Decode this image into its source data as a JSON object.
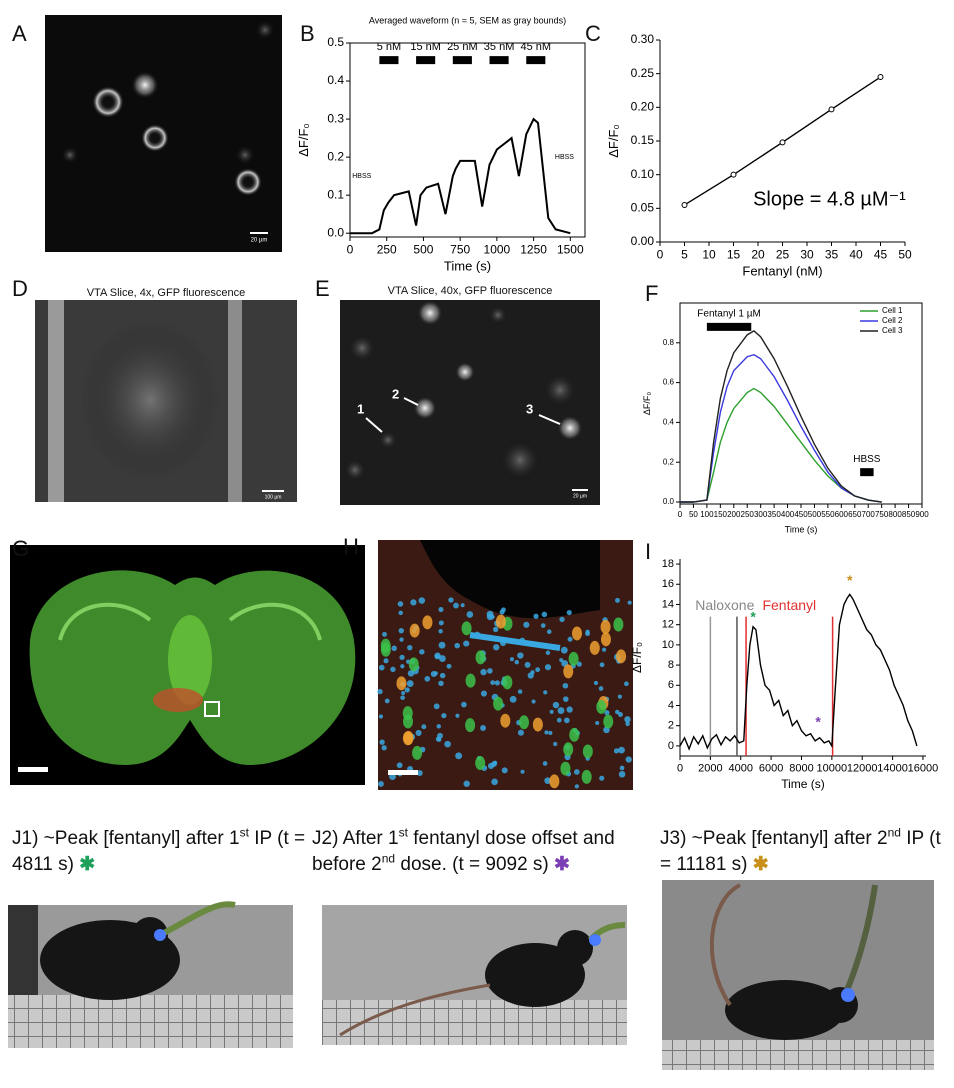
{
  "panel_labels": [
    "A",
    "B",
    "C",
    "D",
    "E",
    "F",
    "G",
    "H",
    "I"
  ],
  "images": {
    "A": {
      "scale_bar": "20 µm"
    },
    "D": {
      "title": "VTA Slice, 4x, GFP fluorescence",
      "scale_bar": "100 µm"
    },
    "E": {
      "title": "VTA Slice, 40x, GFP fluorescence",
      "scale_bar": "20 µm",
      "cell_labels": [
        "1",
        "2",
        "3"
      ]
    }
  },
  "chart_data": [
    {
      "type": "line",
      "title": "Averaged waveform (n = 5, SEM as gray bounds)",
      "x_label": "Time (s)",
      "y_label": "ΔF/F₀",
      "x": [
        0,
        150,
        200,
        230,
        260,
        300,
        400,
        450,
        480,
        520,
        600,
        650,
        700,
        720,
        750,
        850,
        900,
        950,
        1000,
        1100,
        1150,
        1200,
        1250,
        1280,
        1350,
        1400,
        1500
      ],
      "values": [
        0,
        0,
        0.01,
        0.06,
        0.08,
        0.1,
        0.11,
        0.02,
        0.1,
        0.12,
        0.13,
        0.05,
        0.15,
        0.17,
        0.19,
        0.19,
        0.07,
        0.18,
        0.22,
        0.25,
        0.15,
        0.26,
        0.3,
        0.29,
        0.04,
        0.01,
        0.0
      ],
      "color": "#000000",
      "xlim": [
        0,
        1600
      ],
      "ylim": [
        -0.01,
        0.5
      ],
      "xticks": [
        0,
        250,
        500,
        750,
        1000,
        1250,
        1500
      ],
      "yticks": [
        {
          "value": 0,
          "label": "0.0"
        },
        {
          "value": 0.1,
          "label": "0.1"
        },
        {
          "value": 0.2,
          "label": "0.2"
        },
        {
          "value": 0.3,
          "label": "0.3"
        },
        {
          "value": 0.4,
          "label": "0.4"
        },
        {
          "value": 0.5,
          "label": "0.5"
        }
      ],
      "stimuli": [
        {
          "label": "5 nM",
          "start": 200,
          "end": 330,
          "y": 0.455
        },
        {
          "label": "15 nM",
          "start": 450,
          "end": 580,
          "y": 0.455
        },
        {
          "label": "25 nM",
          "start": 700,
          "end": 830,
          "y": 0.455
        },
        {
          "label": "35 nM",
          "start": 950,
          "end": 1080,
          "y": 0.455
        },
        {
          "label": "45 nM",
          "start": 1200,
          "end": 1330,
          "y": 0.455
        }
      ],
      "annotations": [
        {
          "text": "HBSS",
          "x": 80,
          "y": 0.15
        },
        {
          "text": "HBSS",
          "x": 1460,
          "y": 0.2
        }
      ]
    },
    {
      "type": "line",
      "x_label": "Fentanyl (nM)",
      "y_label": "ΔF/F₀",
      "x": [
        5,
        15,
        25,
        35,
        45
      ],
      "values": [
        0.055,
        0.1,
        0.148,
        0.197,
        0.245
      ],
      "color": "#000000",
      "markers": true,
      "xlim": [
        0,
        50
      ],
      "ylim": [
        0,
        0.3
      ],
      "xticks": [
        0,
        5,
        10,
        15,
        20,
        25,
        30,
        35,
        40,
        45,
        50
      ],
      "yticks": [
        {
          "value": 0,
          "label": "0.00"
        },
        {
          "value": 0.05,
          "label": "0.05"
        },
        {
          "value": 0.1,
          "label": "0.10"
        },
        {
          "value": 0.15,
          "label": "0.15"
        },
        {
          "value": 0.2,
          "label": "0.20"
        },
        {
          "value": 0.25,
          "label": "0.25"
        },
        {
          "value": 0.3,
          "label": "0.30"
        }
      ],
      "annotations": [
        {
          "text": "Slope = 4.8 µM⁻¹",
          "x": 19,
          "y": 0.062,
          "size": "large"
        }
      ]
    },
    {
      "type": "line",
      "x_label": "Time (s)",
      "y_label": "ΔF/F₀",
      "x": [
        0,
        50,
        100,
        125,
        150,
        175,
        200,
        250,
        275,
        300,
        350,
        400,
        450,
        500,
        550,
        600,
        650,
        700,
        750
      ],
      "series": [
        {
          "name": "Cell 1",
          "color": "#2ca02c",
          "values": [
            0,
            0,
            0.01,
            0.15,
            0.3,
            0.4,
            0.47,
            0.55,
            0.57,
            0.55,
            0.48,
            0.39,
            0.3,
            0.21,
            0.13,
            0.07,
            0.03,
            0.01,
            0
          ]
        },
        {
          "name": "Cell 2",
          "color": "#3a3adf",
          "values": [
            0,
            0,
            0.01,
            0.25,
            0.45,
            0.58,
            0.66,
            0.73,
            0.74,
            0.72,
            0.63,
            0.51,
            0.38,
            0.26,
            0.15,
            0.07,
            0.03,
            0.01,
            0
          ]
        },
        {
          "name": "Cell 3",
          "color": "#222222",
          "values": [
            0,
            0,
            0.01,
            0.3,
            0.52,
            0.66,
            0.75,
            0.84,
            0.86,
            0.83,
            0.72,
            0.58,
            0.43,
            0.29,
            0.17,
            0.08,
            0.03,
            0.01,
            0
          ]
        }
      ],
      "xlim": [
        0,
        900
      ],
      "ylim": [
        -0.01,
        1.0
      ],
      "xticks": [
        0,
        50,
        100,
        150,
        200,
        250,
        300,
        350,
        400,
        450,
        500,
        550,
        600,
        650,
        700,
        750,
        800,
        850,
        900
      ],
      "yticks": [
        {
          "value": 0,
          "label": "0.0"
        },
        {
          "value": 0.2,
          "label": "0.2"
        },
        {
          "value": 0.4,
          "label": "0.4"
        },
        {
          "value": 0.6,
          "label": "0.6"
        },
        {
          "value": 0.8,
          "label": "0.8"
        }
      ],
      "legend": "upper right",
      "stimuli": [
        {
          "label": "Fentanyl 1 µM",
          "start": 100,
          "end": 265,
          "y": 0.88
        },
        {
          "label": "HBSS",
          "start": 670,
          "end": 720,
          "y": 0.15
        }
      ]
    },
    {
      "type": "line",
      "x_label": "Time (s)",
      "y_label": "ΔF/F₀",
      "x": [
        0,
        300,
        600,
        900,
        1200,
        1500,
        1800,
        2100,
        2400,
        2700,
        3000,
        3300,
        3600,
        3900,
        4200,
        4400,
        4600,
        4811,
        5000,
        5300,
        5600,
        5900,
        6200,
        6500,
        6800,
        7100,
        7400,
        7700,
        8000,
        8300,
        8600,
        8900,
        9200,
        9500,
        9800,
        10000,
        10200,
        10500,
        10800,
        11000,
        11181,
        11400,
        11700,
        12000,
        12300,
        12600,
        12900,
        13200,
        13500,
        13800,
        14100,
        14400,
        14700,
        15000,
        15300,
        15600
      ],
      "values": [
        0,
        0.8,
        -0.3,
        0.9,
        0.2,
        1.0,
        -0.2,
        0.7,
        1.1,
        0.1,
        0.9,
        0.5,
        1.0,
        0.3,
        0.5,
        6,
        10,
        11.8,
        11.5,
        8,
        6,
        5.5,
        4,
        4.5,
        3,
        3.5,
        2,
        2.5,
        1.5,
        1,
        1.2,
        0.5,
        0.8,
        0.3,
        0.5,
        0,
        5,
        12,
        14,
        14.6,
        15,
        14.5,
        13.5,
        12.5,
        11.5,
        11,
        10,
        9.5,
        8.5,
        7.5,
        6,
        5,
        4,
        2.5,
        1.5,
        0
      ],
      "color": "#000000",
      "xlim": [
        0,
        16200
      ],
      "ylim": [
        -1,
        18.5
      ],
      "xticks": [
        0,
        2000,
        4000,
        6000,
        8000,
        10000,
        12000,
        14000,
        16000
      ],
      "yticks": [
        0,
        2,
        4,
        6,
        8,
        10,
        12,
        14,
        16,
        18
      ],
      "vlines": [
        {
          "x": 2000,
          "top": 12.8,
          "color": "#999999"
        },
        {
          "x": 3750,
          "top": 12.8,
          "color": "#555555"
        },
        {
          "x": 4350,
          "top": 12.8,
          "color": "#e03030"
        },
        {
          "x": 10050,
          "top": 12.8,
          "color": "#e03030"
        }
      ],
      "annotations": [
        {
          "text": "Naloxone",
          "x": 2950,
          "y": 13.8,
          "color": "#888888",
          "size": "large"
        },
        {
          "text": "Fentanyl",
          "x": 7200,
          "y": 13.8,
          "color": "#e03030",
          "size": "large"
        }
      ],
      "stars": [
        {
          "label": "*",
          "x": 4811,
          "y": 12.7,
          "color": "#1fa05a"
        },
        {
          "label": "*",
          "x": 9092,
          "y": 2.3,
          "color": "#7b3fb5"
        },
        {
          "label": "*",
          "x": 11181,
          "y": 16.3,
          "color": "#c8901a"
        }
      ]
    }
  ],
  "photos": [
    {
      "caption": [
        {
          "text": "J1) ~Peak [fentanyl] after 1"
        },
        {
          "text": "st",
          "sup": true
        },
        {
          "text": " IP (t = 4811 s) "
        }
      ],
      "star": "✱",
      "star_color": "#1fa05a"
    },
    {
      "caption": [
        {
          "text": "J2) After 1"
        },
        {
          "text": "st",
          "sup": true
        },
        {
          "text": " fentanyl dose offset and before 2"
        },
        {
          "text": "nd",
          "sup": true
        },
        {
          "text": " dose. (t = 9092 s) "
        }
      ],
      "star": "✱",
      "star_color": "#7b3fb5"
    },
    {
      "caption": [
        {
          "text": "J3) ~Peak [fentanyl] after 2"
        },
        {
          "text": "nd",
          "sup": true
        },
        {
          "text": " IP (t = 11181 s) "
        }
      ],
      "star": "✱",
      "star_color": "#c8901a"
    }
  ]
}
